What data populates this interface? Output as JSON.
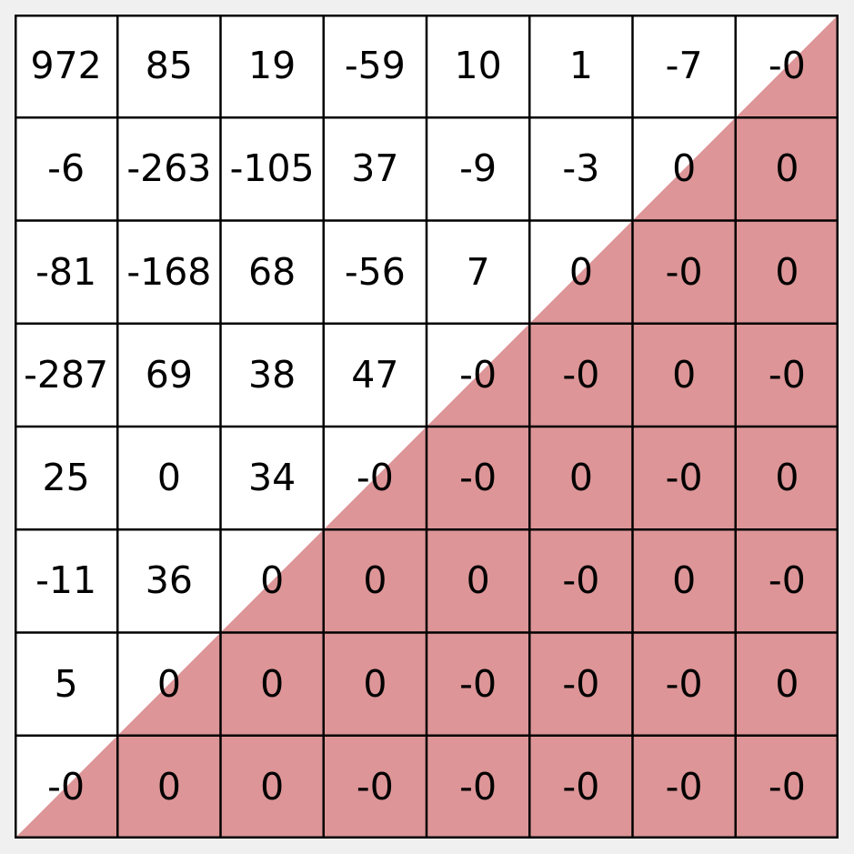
{
  "matrix": {
    "rows": 8,
    "cols": 8,
    "values": [
      [
        "972",
        "85",
        "19",
        "-59",
        "10",
        "1",
        "-7",
        "-0"
      ],
      [
        "-6",
        "-263",
        "-105",
        "37",
        "-9",
        "-3",
        "0",
        "0"
      ],
      [
        "-81",
        "-168",
        "68",
        "-56",
        "7",
        "0",
        "-0",
        "0"
      ],
      [
        "-287",
        "69",
        "38",
        "47",
        "-0",
        "-0",
        "0",
        "-0"
      ],
      [
        "25",
        "0",
        "34",
        "-0",
        "-0",
        "0",
        "-0",
        "0"
      ],
      [
        "-11",
        "36",
        "0",
        "0",
        "0",
        "-0",
        "0",
        "-0"
      ],
      [
        "5",
        "0",
        "0",
        "0",
        "-0",
        "-0",
        "-0",
        "0"
      ],
      [
        "-0",
        "0",
        "0",
        "-0",
        "-0",
        "-0",
        "-0",
        "-0"
      ]
    ],
    "colors": {
      "highlight": "#dd9597",
      "cell_background": "#ffffff",
      "grid_line": "#000000",
      "page_background": "#f0f0f0"
    }
  }
}
